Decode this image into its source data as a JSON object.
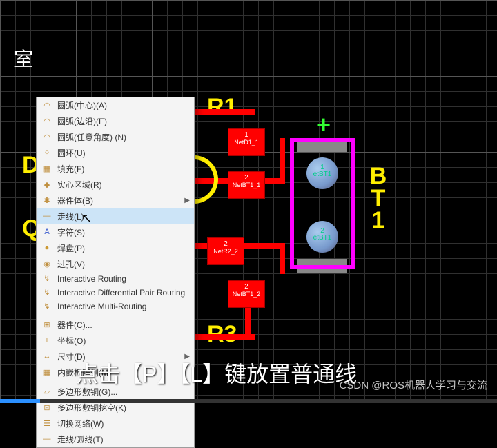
{
  "room_label": "室",
  "designators": {
    "r1": "R1",
    "r3": "R3",
    "bt1": "BT1",
    "plus": "+",
    "d": "D",
    "q": "Q"
  },
  "pads": {
    "p1": {
      "n": "1",
      "net": "NetD1_1"
    },
    "p2": {
      "n": "2",
      "net": "NetBT1_1"
    },
    "p3": {
      "n": "2",
      "net": "NetR2_2"
    },
    "p4": {
      "n": "2",
      "net": "NetBT1_2"
    }
  },
  "bt_pads": {
    "a": {
      "n": "1",
      "net": "etBT1"
    },
    "b": {
      "n": "2",
      "net": "etBT1"
    }
  },
  "menu": [
    {
      "i": "◠",
      "t": "圆弧(中心)(A)"
    },
    {
      "i": "◠",
      "t": "圆弧(边沿)(E)"
    },
    {
      "i": "◠",
      "t": "圆弧(任意角度) (N)"
    },
    {
      "i": "○",
      "t": "圆环(U)"
    },
    {
      "i": "▦",
      "t": "填充(F)"
    },
    {
      "i": "◆",
      "t": "实心区域(R)"
    },
    {
      "i": "✱",
      "t": "器件体(B)",
      "arr": true
    },
    {
      "i": "—",
      "t": "走线(L)",
      "hover": true
    },
    {
      "i": "A",
      "t": "字符(S)",
      "ic": "#3355cc"
    },
    {
      "i": "●",
      "t": "焊盘(P)",
      "ic": "#cc9933"
    },
    {
      "i": "◉",
      "t": "过孔(V)"
    },
    {
      "i": "↯",
      "t": "Interactive Routing"
    },
    {
      "i": "↯",
      "t": "Interactive Differential Pair Routing"
    },
    {
      "i": "↯",
      "t": "Interactive Multi-Routing"
    },
    {
      "sep": true
    },
    {
      "i": "⊞",
      "t": "器件(C)..."
    },
    {
      "i": "+",
      "t": "坐标(O)"
    },
    {
      "i": "↔",
      "t": "尺寸(D)",
      "arr": true
    },
    {
      "i": "▦",
      "t": "内嵌板阵列(M)"
    },
    {
      "sep": true
    },
    {
      "i": "▱",
      "t": "多边形敷铜(G)..."
    },
    {
      "i": "⊡",
      "t": "多边形敷铜挖空(K)"
    },
    {
      "i": "☰",
      "t": "切换网络(W)"
    },
    {
      "i": "—",
      "t": "走线/弧线(T)"
    }
  ],
  "subtitle": "点击【P】【L】键放置普通线",
  "watermark": "CSDN @ROS机器人学习与交流"
}
